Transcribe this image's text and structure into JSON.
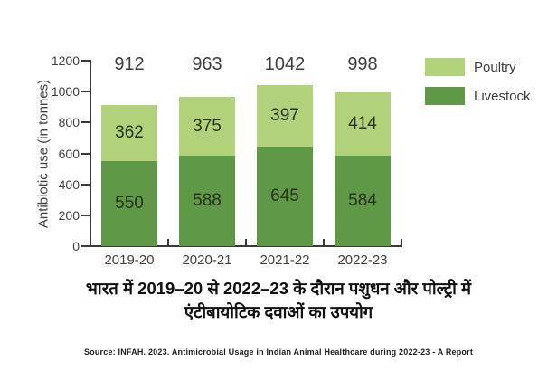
{
  "chart_data": {
    "type": "bar",
    "stacked": true,
    "categories": [
      "2019-20",
      "2020-21",
      "2021-22",
      "2022-23"
    ],
    "series": [
      {
        "name": "Livestock",
        "color": "#5f9948",
        "values": [
          550,
          588,
          645,
          584
        ]
      },
      {
        "name": "Poultry",
        "color": "#b1d27b",
        "values": [
          362,
          375,
          397,
          414
        ]
      }
    ],
    "totals": [
      912,
      963,
      1042,
      998
    ],
    "ylabel": "Antibiotic use (in tonnes)",
    "xlabel": "",
    "ylim": [
      0,
      1200
    ],
    "yticks": [
      0,
      200,
      400,
      600,
      800,
      1000,
      1200
    ],
    "grid": false,
    "legend": {
      "position": "top-right",
      "entries": [
        {
          "label": "Poultry",
          "color": "#b1d27b"
        },
        {
          "label": "Livestock",
          "color": "#5f9948"
        }
      ]
    }
  },
  "title": {
    "line1": "भारत में 2019–20 से 2022–23 के दौरान पशुधन और पोल्ट्री में",
    "line2": "एंटीबायोटिक दवाओं का उपयोग"
  },
  "source": "Source: INFAH. 2023. Antimicrobial Usage in Indian Animal Healthcare during 2022-23 - A Report",
  "colors": {
    "background": "#ffffff",
    "axis": "#3a3a3a",
    "tick_label": "#3f3f3f",
    "bar_value_text": "#27331f",
    "total_text": "#3f3f3f"
  }
}
